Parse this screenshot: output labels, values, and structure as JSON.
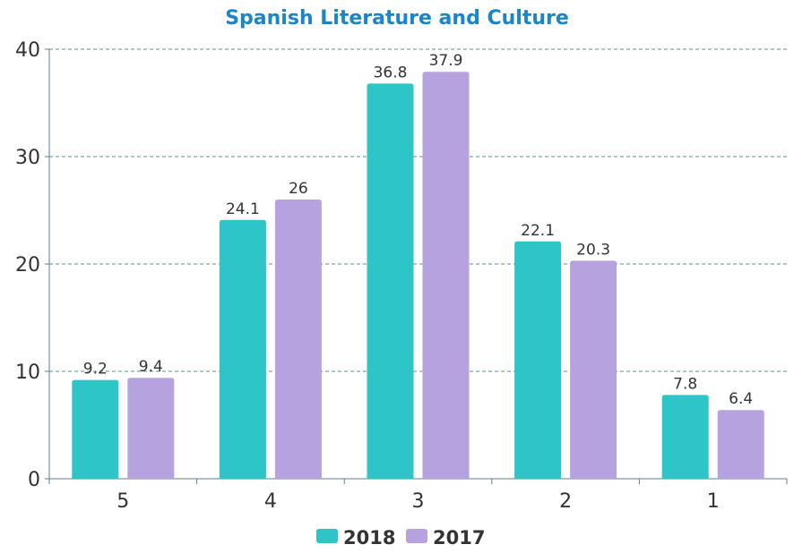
{
  "chart_data": {
    "type": "bar",
    "title": "Spanish Literature and Culture",
    "categories": [
      "5",
      "4",
      "3",
      "2",
      "1"
    ],
    "series": [
      {
        "name": "2018",
        "values": [
          9.2,
          24.1,
          36.8,
          22.1,
          7.8
        ],
        "color": "#2ec5c8"
      },
      {
        "name": "2017",
        "values": [
          9.4,
          26,
          37.9,
          20.3,
          6.4
        ],
        "color": "#b6a2de"
      }
    ],
    "ylim": [
      0,
      40
    ],
    "yticks": [
      0,
      10,
      20,
      30,
      40
    ],
    "xlabel": "",
    "ylabel": "",
    "grid": "horizontal-dashed",
    "legend": "bottom-center",
    "colors": {
      "title": "#1a86c8",
      "axis": "#5a7d8c",
      "grid": "#5a8f8f",
      "text": "#333333"
    }
  }
}
